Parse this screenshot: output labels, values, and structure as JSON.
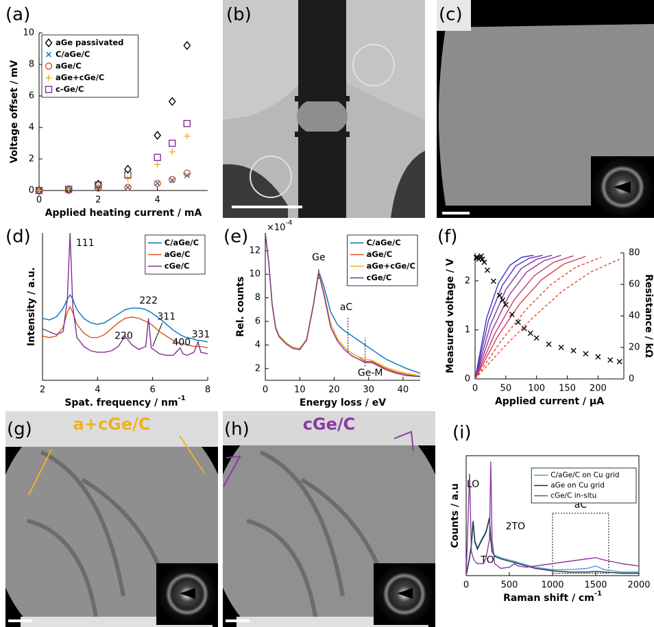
{
  "chart_data": [
    {
      "type": "scatter",
      "panel": "(a)",
      "xlabel": "Applied heating current / mA",
      "ylabel": "Voltage offset / mV",
      "x": [
        0,
        1,
        2,
        3,
        4,
        4.5,
        5
      ],
      "xlim": [
        0,
        5.7
      ],
      "ylim": [
        0,
        10
      ],
      "xticks": [
        0,
        2,
        4
      ],
      "yticks": [
        0,
        2,
        4,
        6,
        8,
        10
      ],
      "legend": "upper left",
      "series": [
        {
          "name": "aGe passivated",
          "color": "#000000",
          "marker": "diamond",
          "values": [
            0,
            0.05,
            0.4,
            1.35,
            3.5,
            5.65,
            9.2
          ]
        },
        {
          "name": "C/aGe/C",
          "color": "#0072bd",
          "marker": "x",
          "values": [
            0,
            0.02,
            0.12,
            0.2,
            0.45,
            0.65,
            0.95
          ]
        },
        {
          "name": "aGe/C",
          "color": "#d95319",
          "marker": "circle",
          "values": [
            0,
            0.03,
            0.15,
            0.2,
            0.45,
            0.7,
            1.1
          ]
        },
        {
          "name": "aGe+cGe/C",
          "color": "#edb120",
          "marker": "plus",
          "values": [
            0,
            0.05,
            0.3,
            0.75,
            1.65,
            2.45,
            3.45
          ]
        },
        {
          "name": "c-Ge/C",
          "color": "#7e2f8e",
          "marker": "square",
          "values": [
            0,
            0.08,
            0.35,
            1.0,
            2.1,
            3.0,
            4.25
          ]
        }
      ]
    },
    {
      "type": "line",
      "panel": "(d)",
      "xlabel": "Spat. frequency / nm",
      "xlabel_superscript": "-1",
      "ylabel": "Intensity / a.u.",
      "x": [
        2,
        2.25,
        2.5,
        2.75,
        2.9,
        3,
        3.1,
        3.25,
        3.5,
        3.75,
        4,
        4.25,
        4.5,
        4.75,
        5,
        5.25,
        5.5,
        5.75,
        5.85,
        5.95,
        6.25,
        6.5,
        6.75,
        7,
        7.1,
        7.25,
        7.5,
        7.65,
        7.75,
        8
      ],
      "xlim": [
        2,
        8
      ],
      "ylim": [
        0,
        10
      ],
      "xticks": [
        2,
        4,
        6,
        8
      ],
      "legend": "upper right",
      "series": [
        {
          "name": "C/aGe/C",
          "color": "#0072bd",
          "values": [
            4.2,
            4.1,
            4.3,
            4.9,
            5.5,
            5.8,
            5.5,
            4.8,
            4.2,
            3.9,
            3.8,
            3.9,
            4.2,
            4.5,
            4.8,
            4.9,
            4.9,
            4.8,
            4.7,
            4.6,
            4.2,
            3.8,
            3.4,
            3.1,
            3.0,
            2.9,
            2.8,
            2.7,
            2.7,
            2.6
          ]
        },
        {
          "name": "aGe/C",
          "color": "#d95319",
          "values": [
            3.0,
            2.9,
            3.0,
            3.6,
            4.6,
            5.0,
            4.6,
            3.8,
            3.2,
            2.9,
            2.9,
            3.1,
            3.5,
            3.9,
            4.2,
            4.3,
            4.2,
            4.0,
            3.9,
            3.8,
            3.3,
            3.0,
            2.7,
            2.5,
            2.5,
            2.4,
            2.3,
            2.3,
            2.3,
            2.2
          ]
        },
        {
          "name": "cGe/C",
          "color": "#7e2f8e",
          "values": [
            3.5,
            3.3,
            3.1,
            3.3,
            5.5,
            10,
            5.0,
            2.9,
            2.3,
            2.0,
            1.9,
            1.9,
            2.0,
            2.3,
            3.0,
            2.4,
            2.1,
            2.3,
            4.2,
            2.2,
            1.8,
            1.7,
            1.7,
            2.2,
            1.8,
            1.7,
            1.9,
            2.6,
            1.9,
            1.8
          ]
        }
      ],
      "annotations": [
        {
          "text": "111",
          "x": 3.55,
          "y": 9.3
        },
        {
          "text": "220",
          "x": 4.95,
          "y": 3.0
        },
        {
          "text": "222",
          "x": 5.85,
          "y": 5.4
        },
        {
          "text": "311",
          "x": 6.5,
          "y": 4.3
        },
        {
          "text": "400",
          "x": 7.05,
          "y": 2.55
        },
        {
          "text": "331",
          "x": 7.75,
          "y": 3.1
        }
      ],
      "lines": [
        {
          "x": [
            6.35,
            6.0
          ],
          "y": [
            3.9,
            2.3
          ],
          "style": "solid"
        }
      ]
    },
    {
      "type": "line",
      "panel": "(e)",
      "xlabel": "Energy loss / eV",
      "ylabel": "Rel. counts",
      "y_multiplier": "×10",
      "y_multiplier_exp": "-4",
      "x": [
        0,
        1,
        2,
        3,
        4,
        6,
        8,
        10,
        12,
        14,
        15.5,
        17,
        19,
        21,
        23,
        25,
        27,
        29,
        31,
        33,
        35,
        38,
        41,
        45
      ],
      "xlim": [
        0,
        45
      ],
      "ylim": [
        1,
        13.5
      ],
      "xticks": [
        0,
        10,
        20,
        30,
        40
      ],
      "yticks": [
        2,
        4,
        6,
        8,
        10,
        12
      ],
      "legend": "upper right",
      "series": [
        {
          "name": "C/aGe/C",
          "color": "#0072bd",
          "values": [
            13.5,
            11,
            7.5,
            5.5,
            4.8,
            4.2,
            3.8,
            3.7,
            4.5,
            7.5,
            10.3,
            9.0,
            6.8,
            5.7,
            5.2,
            4.8,
            4.4,
            4.0,
            3.6,
            3.2,
            2.8,
            2.4,
            2.0,
            1.6
          ]
        },
        {
          "name": "aGe/C",
          "color": "#d95319",
          "values": [
            13.5,
            11,
            7.5,
            5.5,
            4.8,
            4.2,
            3.8,
            3.7,
            4.5,
            7.5,
            10.2,
            8.5,
            5.8,
            4.5,
            3.8,
            3.3,
            3.0,
            2.6,
            2.6,
            2.3,
            2.0,
            1.7,
            1.5,
            1.3
          ]
        },
        {
          "name": "aGe+cGe/C",
          "color": "#edb120",
          "values": [
            13.5,
            11,
            7.5,
            5.5,
            4.8,
            4.2,
            3.8,
            3.7,
            4.5,
            7.5,
            10.2,
            8.5,
            5.8,
            4.5,
            3.8,
            3.3,
            3.0,
            2.8,
            2.7,
            2.4,
            2.1,
            1.8,
            1.6,
            1.4
          ]
        },
        {
          "name": "cGe/C",
          "color": "#7e2f8e",
          "values": [
            13.5,
            11,
            7.4,
            5.4,
            4.7,
            4.1,
            3.7,
            3.6,
            4.4,
            7.4,
            10.1,
            8.3,
            5.5,
            4.3,
            3.6,
            3.1,
            2.8,
            2.5,
            2.5,
            2.2,
            1.9,
            1.6,
            1.4,
            1.3
          ]
        }
      ],
      "annotations": [
        {
          "text": "Ge",
          "x": 15.5,
          "y": 11.4
        },
        {
          "text": "aC",
          "x": 23.5,
          "y": 7.2
        },
        {
          "text": "Ge-M",
          "x": 30.5,
          "y": 1.6
        }
      ],
      "lines": [
        {
          "x": [
            15.5,
            15.5
          ],
          "y": [
            9.6,
            10.5
          ],
          "style": "dotted"
        },
        {
          "x": [
            24,
            24
          ],
          "y": [
            3.4,
            6.3
          ],
          "style": "dotted"
        },
        {
          "x": [
            29,
            29
          ],
          "y": [
            2.2,
            4.6
          ],
          "style": "dotted"
        }
      ]
    },
    {
      "type": "line",
      "panel": "(f)",
      "xlabel": "Applied current / μA",
      "ylabel": "Measured voltage / V",
      "y2label": "Resistance / kΩ",
      "xlim": [
        0,
        242
      ],
      "ylim": [
        0,
        2.57
      ],
      "y2lim": [
        0,
        80
      ],
      "xticks": [
        0,
        50,
        100,
        150,
        200
      ],
      "yticks": [
        0,
        1,
        2
      ],
      "y2ticks": [
        0,
        20,
        40,
        60,
        80
      ],
      "series": [
        {
          "color": "#3a30c0",
          "x": [
            0,
            19,
            38,
            57,
            76,
            95
          ],
          "values": [
            0,
            1.25,
            1.95,
            2.32,
            2.48,
            2.52
          ]
        },
        {
          "color": "#5a32b4",
          "x": [
            0,
            22,
            44,
            66,
            88,
            110
          ],
          "values": [
            0,
            1.2,
            1.9,
            2.3,
            2.46,
            2.52
          ]
        },
        {
          "color": "#7a34a4",
          "x": [
            0,
            25,
            50,
            75,
            100,
            125
          ],
          "values": [
            0,
            1.1,
            1.82,
            2.25,
            2.44,
            2.52
          ]
        },
        {
          "color": "#9c3690",
          "x": [
            0,
            28,
            56,
            84,
            112,
            140
          ],
          "values": [
            0,
            1.0,
            1.72,
            2.18,
            2.41,
            2.52
          ]
        },
        {
          "color": "#bc3874",
          "x": [
            0,
            32,
            64,
            96,
            128,
            160
          ],
          "values": [
            0,
            0.92,
            1.62,
            2.1,
            2.38,
            2.51
          ]
        },
        {
          "color": "#d83a52",
          "x": [
            0,
            36,
            72,
            108,
            144,
            180
          ],
          "values": [
            0,
            0.85,
            1.52,
            2.02,
            2.34,
            2.5
          ]
        },
        {
          "color": "#e83c32",
          "style": "dashed",
          "x": [
            0,
            41,
            82,
            123,
            164,
            205
          ],
          "values": [
            0,
            0.75,
            1.4,
            1.92,
            2.28,
            2.48
          ]
        },
        {
          "color": "#f04420",
          "style": "dashed",
          "x": [
            0,
            47,
            94,
            141,
            188,
            235
          ],
          "values": [
            0,
            0.65,
            1.25,
            1.78,
            2.18,
            2.44
          ]
        },
        {
          "color": "#000000",
          "marker": "x",
          "axis": "y2",
          "x": [
            2,
            4,
            6,
            8,
            10,
            12,
            15,
            20,
            30,
            40,
            45,
            50,
            60,
            70,
            80,
            90,
            100,
            120,
            140,
            160,
            180,
            200,
            220,
            235
          ],
          "values": [
            77,
            77,
            76,
            77,
            78,
            76,
            74,
            69,
            62,
            53,
            50,
            47,
            41,
            36,
            32,
            29,
            26,
            22,
            20,
            18,
            16,
            14,
            12,
            11
          ]
        }
      ]
    },
    {
      "type": "line",
      "panel": "(i)",
      "xlabel": "Raman shift / cm",
      "xlabel_superscript": "-1",
      "ylabel": "Counts / a.u",
      "box": true,
      "x": [
        0,
        40,
        60,
        80,
        100,
        130,
        170,
        200,
        230,
        270,
        285,
        300,
        330,
        400,
        500,
        560,
        600,
        700,
        800,
        1000,
        1200,
        1400,
        1500,
        1600,
        1800,
        2000
      ],
      "xlim": [
        0,
        2000
      ],
      "ylim": [
        0,
        10
      ],
      "xticks": [
        0,
        500,
        1000,
        1500,
        2000
      ],
      "legend": "upper right",
      "series": [
        {
          "name": "C/aGe/C on Cu grid",
          "color": "#4a9fd8",
          "values": [
            0,
            1.6,
            2.6,
            4.6,
            3.0,
            2.3,
            2.9,
            3.3,
            3.7,
            4.9,
            3.2,
            2.1,
            1.7,
            1.5,
            1.3,
            1.2,
            1.1,
            0.9,
            0.7,
            0.5,
            0.5,
            0.6,
            0.8,
            0.5,
            0.3,
            0.3
          ]
        },
        {
          "name": "aGe on Cu grid",
          "color": "#1a2a3a",
          "values": [
            0,
            1.5,
            2.5,
            4.5,
            2.8,
            2.2,
            2.8,
            3.2,
            3.6,
            4.8,
            3.0,
            2.0,
            1.6,
            1.4,
            1.2,
            1.1,
            1.0,
            0.8,
            0.6,
            0.4,
            0.3,
            0.3,
            0.35,
            0.3,
            0.2,
            0.2
          ]
        },
        {
          "name": "cGe/C in-situ",
          "color": "#8a3aa0",
          "values": [
            0,
            8.5,
            2.0,
            1.5,
            1.2,
            1.0,
            1.0,
            1.0,
            1.5,
            3.0,
            9.5,
            3.0,
            1.0,
            0.6,
            0.7,
            1.0,
            0.8,
            0.7,
            0.8,
            1.0,
            1.2,
            1.4,
            1.5,
            1.3,
            1.0,
            0.8
          ]
        }
      ],
      "annotations": [
        {
          "text": "LO",
          "x": 80,
          "y": 7.6
        },
        {
          "text": "TO",
          "x": 245,
          "y": 1.3
        },
        {
          "text": "2TO",
          "x": 570,
          "y": 4.1
        },
        {
          "text": "aC",
          "x": 1325,
          "y": 5.9
        }
      ],
      "boxes": [
        {
          "x": [
            1000,
            1650
          ],
          "y": [
            0.2,
            5.2
          ]
        }
      ]
    }
  ],
  "images": [
    {
      "panel": "(b)"
    },
    {
      "panel": "(c)"
    },
    {
      "panel": "(g)",
      "title": "a+cGe/C"
    },
    {
      "panel": "(h)",
      "title": "cGe/C"
    }
  ]
}
